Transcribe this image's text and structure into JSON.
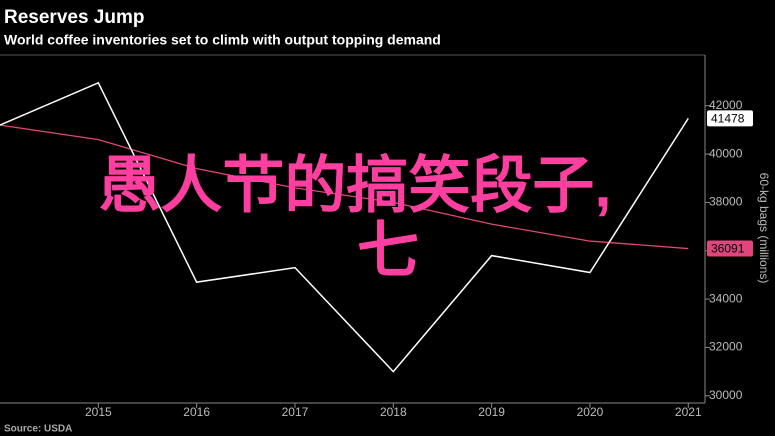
{
  "chart_data": {
    "type": "line",
    "title": "Reserves Jump",
    "subtitle": "World coffee inventories set to climb with output topping demand",
    "y_axis_label": "60-kg bags (millions)",
    "source": "Source: USDA",
    "overlay_text": [
      "愚人节的搞笑段子,",
      "七"
    ],
    "overlay_color": "#ff3fa0",
    "x": [
      2014,
      2015,
      2016,
      2017,
      2018,
      2019,
      2020,
      2021
    ],
    "xlim": [
      2014,
      2021.17
    ],
    "xticks": [
      2015,
      2016,
      2017,
      2018,
      2019,
      2020,
      2021
    ],
    "ylim": [
      29700,
      44100
    ],
    "yticks": [
      30000,
      32000,
      34000,
      36000,
      38000,
      40000,
      42000
    ],
    "series": [
      {
        "color": "#ffffff",
        "values": [
          41200,
          42950,
          34700,
          35300,
          31000,
          35800,
          35100,
          41478
        ],
        "label_bg": "#ffffff",
        "label_fg": "#000000"
      },
      {
        "color": "#e0457b",
        "values": [
          41200,
          40600,
          39400,
          38600,
          38000,
          37100,
          36400,
          36091
        ],
        "label_bg": "#e0457b",
        "label_fg": "#000000"
      }
    ]
  }
}
